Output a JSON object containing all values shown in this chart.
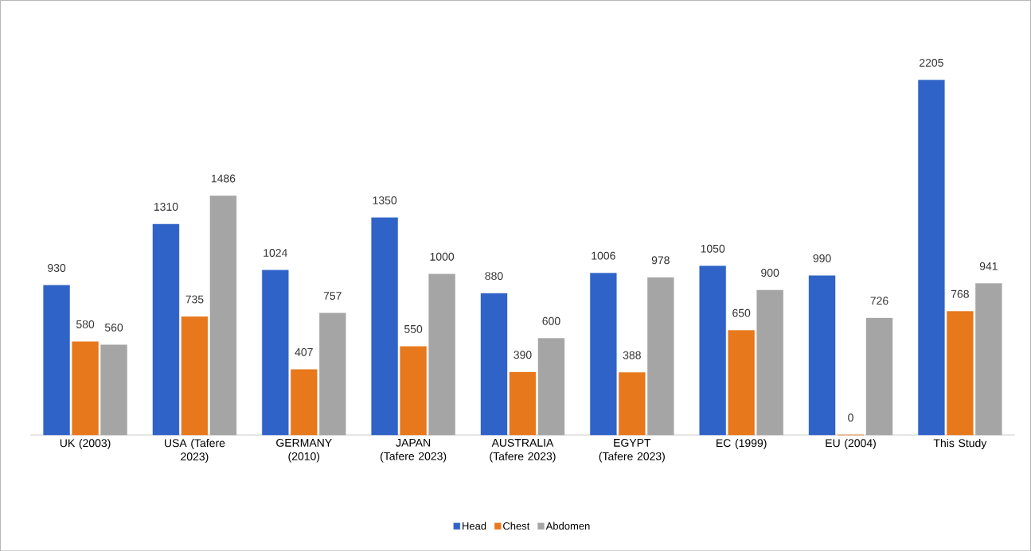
{
  "chart_data": {
    "type": "bar",
    "categories": [
      "UK (2003)",
      "USA  (Tafere 2023)",
      "GERMANY (2010)",
      "JAPAN (Tafere 2023)",
      "AUSTRALIA (Tafere 2023)",
      "EGYPT (Tafere 2023)",
      "EC (1999)",
      "EU (2004)",
      "This Study"
    ],
    "series": [
      {
        "name": "Head",
        "color": "#2f63c8",
        "values": [
          930,
          1310,
          1024,
          1350,
          880,
          1006,
          1050,
          990,
          2205
        ]
      },
      {
        "name": "Chest",
        "color": "#e8781c",
        "values": [
          580,
          735,
          407,
          550,
          390,
          388,
          650,
          0,
          768
        ]
      },
      {
        "name": "Abdomen",
        "color": "#a5a5a5",
        "values": [
          560,
          1486,
          757,
          1000,
          600,
          978,
          900,
          726,
          941
        ]
      }
    ],
    "data_labels": true,
    "legend": "bottom"
  }
}
